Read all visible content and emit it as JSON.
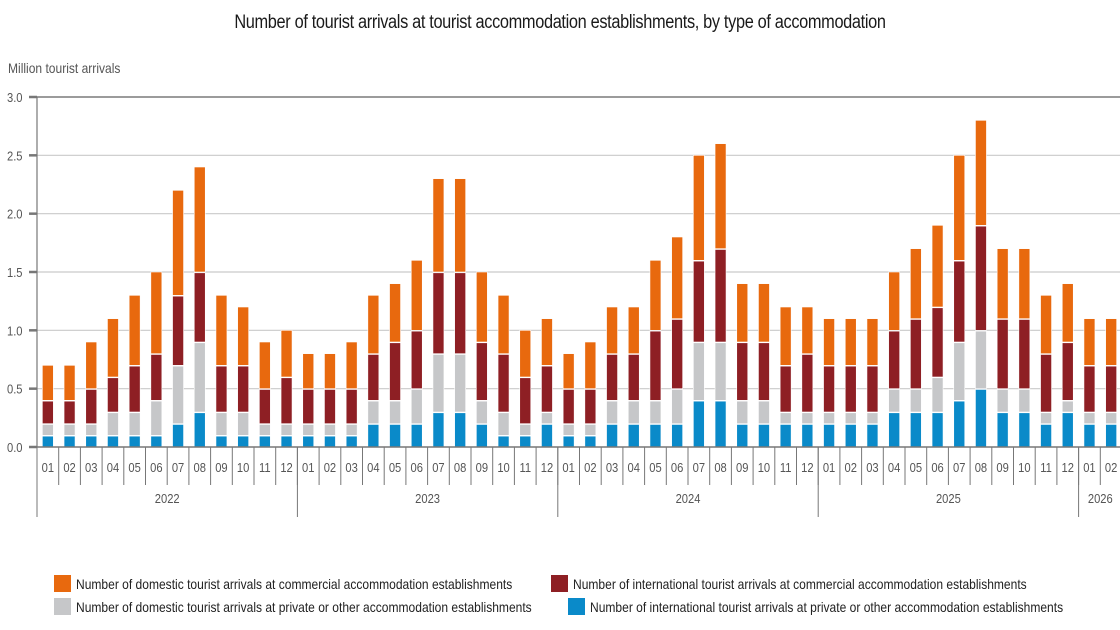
{
  "chart_data": {
    "type": "bar",
    "stacked": true,
    "title": "Number of tourist arrivals at tourist accommodation establishments, by type of accommodation",
    "ylabel": "Million tourist arrivals",
    "xlabel": "",
    "ylim": [
      0,
      3.0
    ],
    "yticks": [
      "0.0",
      "0.5",
      "1.0",
      "1.5",
      "2.0",
      "2.5",
      "3.0"
    ],
    "ytick_values": [
      0,
      0.5,
      1.0,
      1.5,
      2.0,
      2.5,
      3.0
    ],
    "grid": true,
    "legend_position": "bottom",
    "years": [
      {
        "label": "2022",
        "months": 12
      },
      {
        "label": "2023",
        "months": 12
      },
      {
        "label": "2024",
        "months": 12
      },
      {
        "label": "2025",
        "months": 12
      },
      {
        "label": "2026",
        "months": 2
      }
    ],
    "categories": [
      "01",
      "02",
      "03",
      "04",
      "05",
      "06",
      "07",
      "08",
      "09",
      "10",
      "11",
      "12",
      "01",
      "02",
      "03",
      "04",
      "05",
      "06",
      "07",
      "08",
      "09",
      "10",
      "11",
      "12",
      "01",
      "02",
      "03",
      "04",
      "05",
      "06",
      "07",
      "08",
      "09",
      "10",
      "11",
      "12",
      "01",
      "02",
      "03",
      "04",
      "05",
      "06",
      "07",
      "08",
      "09",
      "10",
      "11",
      "12",
      "01",
      "02"
    ],
    "series": [
      {
        "name": "Number of international tourist arrivals at private or other accommodation establishments",
        "color": "#0A8AC9",
        "values": [
          0.1,
          0.1,
          0.1,
          0.1,
          0.1,
          0.1,
          0.2,
          0.3,
          0.1,
          0.1,
          0.1,
          0.1,
          0.1,
          0.1,
          0.1,
          0.2,
          0.2,
          0.2,
          0.3,
          0.3,
          0.2,
          0.1,
          0.1,
          0.2,
          0.1,
          0.1,
          0.2,
          0.2,
          0.2,
          0.2,
          0.4,
          0.4,
          0.2,
          0.2,
          0.2,
          0.2,
          0.2,
          0.2,
          0.2,
          0.3,
          0.3,
          0.3,
          0.4,
          0.5,
          0.3,
          0.3,
          0.2,
          0.3,
          0.2,
          0.2
        ]
      },
      {
        "name": "Number of domestic tourist arrivals at private or other accommodation establishments",
        "color": "#C6C7C9",
        "values": [
          0.1,
          0.1,
          0.1,
          0.2,
          0.2,
          0.3,
          0.5,
          0.6,
          0.2,
          0.2,
          0.1,
          0.1,
          0.1,
          0.1,
          0.1,
          0.2,
          0.2,
          0.3,
          0.5,
          0.5,
          0.2,
          0.2,
          0.1,
          0.1,
          0.1,
          0.1,
          0.2,
          0.2,
          0.2,
          0.3,
          0.5,
          0.5,
          0.2,
          0.2,
          0.1,
          0.1,
          0.1,
          0.1,
          0.1,
          0.2,
          0.2,
          0.3,
          0.5,
          0.5,
          0.2,
          0.2,
          0.1,
          0.1,
          0.1,
          0.1
        ]
      },
      {
        "name": "Number of international tourist arrivals at commercial accommodation establishments",
        "color": "#8E1F24",
        "values": [
          0.2,
          0.2,
          0.3,
          0.3,
          0.4,
          0.4,
          0.6,
          0.6,
          0.4,
          0.4,
          0.3,
          0.4,
          0.3,
          0.3,
          0.3,
          0.4,
          0.5,
          0.5,
          0.7,
          0.7,
          0.5,
          0.5,
          0.4,
          0.4,
          0.3,
          0.3,
          0.4,
          0.4,
          0.6,
          0.6,
          0.7,
          0.8,
          0.5,
          0.5,
          0.4,
          0.5,
          0.4,
          0.4,
          0.4,
          0.5,
          0.6,
          0.6,
          0.7,
          0.9,
          0.6,
          0.6,
          0.5,
          0.5,
          0.4,
          0.4
        ]
      },
      {
        "name": "Number of domestic tourist arrivals at commercial accommodation establishments",
        "color": "#E8690E",
        "values": [
          0.3,
          0.3,
          0.4,
          0.5,
          0.6,
          0.7,
          0.9,
          0.9,
          0.6,
          0.5,
          0.4,
          0.4,
          0.3,
          0.3,
          0.4,
          0.5,
          0.5,
          0.6,
          0.8,
          0.8,
          0.6,
          0.5,
          0.4,
          0.4,
          0.3,
          0.4,
          0.4,
          0.4,
          0.6,
          0.7,
          0.9,
          0.9,
          0.5,
          0.5,
          0.5,
          0.4,
          0.4,
          0.4,
          0.4,
          0.5,
          0.6,
          0.7,
          0.9,
          0.9,
          0.6,
          0.6,
          0.5,
          0.5,
          0.4,
          0.4
        ]
      }
    ],
    "legend": [
      {
        "label": "Number of domestic tourist arrivals at commercial accommodation establishments",
        "color": "#E8690E"
      },
      {
        "label": "Number of international tourist arrivals at commercial accommodation establishments",
        "color": "#8E1F24"
      },
      {
        "label": "Number of domestic tourist arrivals at private or other accommodation establishments",
        "color": "#C6C7C9"
      },
      {
        "label": "Number of international tourist arrivals at private or other accommodation establishments",
        "color": "#0A8AC9"
      }
    ]
  }
}
